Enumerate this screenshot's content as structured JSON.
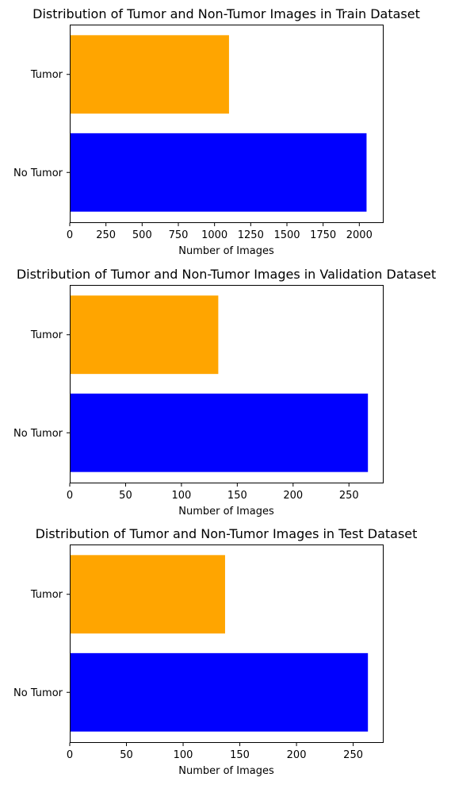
{
  "chart_data": [
    {
      "type": "bar",
      "orientation": "horizontal",
      "title": "Distribution of Tumor and Non-Tumor Images in Train Dataset",
      "xlabel": "Number of Images",
      "ylabel": "",
      "categories": [
        "No Tumor",
        "Tumor"
      ],
      "values": [
        2050,
        1100
      ],
      "colors": [
        "#0000ff",
        "#ffa500"
      ],
      "xlim": [
        0,
        2162.5
      ],
      "xticks": [
        0,
        250,
        500,
        750,
        1000,
        1250,
        1500,
        1750,
        2000
      ],
      "xtick_labels": [
        "0",
        "250",
        "500",
        "750",
        "1000",
        "1250",
        "1500",
        "1750",
        "2000"
      ],
      "grid": false,
      "legend": "none"
    },
    {
      "type": "bar",
      "orientation": "horizontal",
      "title": "Distribution of Tumor and Non-Tumor Images in Validation Dataset",
      "xlabel": "Number of Images",
      "ylabel": "",
      "categories": [
        "No Tumor",
        "Tumor"
      ],
      "values": [
        267,
        133
      ],
      "colors": [
        "#0000ff",
        "#ffa500"
      ],
      "xlim": [
        0,
        280.35
      ],
      "xticks": [
        0,
        50,
        100,
        150,
        200,
        250
      ],
      "xtick_labels": [
        "0",
        "50",
        "100",
        "150",
        "200",
        "250"
      ],
      "grid": false,
      "legend": "none"
    },
    {
      "type": "bar",
      "orientation": "horizontal",
      "title": "Distribution of Tumor and Non-Tumor Images in Test Dataset",
      "xlabel": "Number of Images",
      "ylabel": "",
      "categories": [
        "No Tumor",
        "Tumor"
      ],
      "values": [
        263,
        137
      ],
      "colors": [
        "#0000ff",
        "#ffa500"
      ],
      "xlim": [
        0,
        276.15
      ],
      "xticks": [
        0,
        50,
        100,
        150,
        200,
        250
      ],
      "xtick_labels": [
        "0",
        "50",
        "100",
        "150",
        "200",
        "250"
      ],
      "grid": false,
      "legend": "none"
    }
  ]
}
